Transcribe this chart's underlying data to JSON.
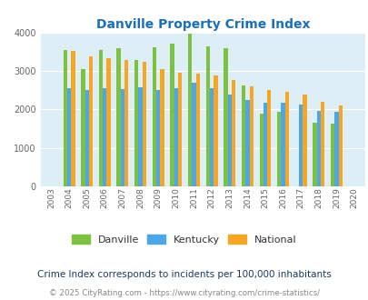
{
  "title": "Danville Property Crime Index",
  "years": [
    2003,
    2004,
    2005,
    2006,
    2007,
    2008,
    2009,
    2010,
    2011,
    2012,
    2013,
    2014,
    2015,
    2016,
    2017,
    2018,
    2019,
    2020
  ],
  "danville": [
    null,
    3550,
    3060,
    3550,
    3600,
    3300,
    3620,
    3720,
    3980,
    3640,
    3610,
    2620,
    1890,
    1950,
    null,
    1660,
    1640,
    null
  ],
  "kentucky": [
    null,
    2560,
    2520,
    2560,
    2540,
    2580,
    2520,
    2560,
    2690,
    2560,
    2380,
    2240,
    2180,
    2180,
    2130,
    1970,
    1930,
    null
  ],
  "national": [
    null,
    3520,
    3400,
    3350,
    3300,
    3240,
    3050,
    2970,
    2940,
    2890,
    2760,
    2610,
    2510,
    2460,
    2380,
    2200,
    2110,
    null
  ],
  "danville_color": "#7dc142",
  "kentucky_color": "#4da6e8",
  "national_color": "#f5a623",
  "bg_color": "#ddeef6",
  "ylim": [
    0,
    4000
  ],
  "yticks": [
    0,
    1000,
    2000,
    3000,
    4000
  ],
  "subtitle": "Crime Index corresponds to incidents per 100,000 inhabitants",
  "footer": "© 2025 CityRating.com - https://www.cityrating.com/crime-statistics/",
  "legend_labels": [
    "Danville",
    "Kentucky",
    "National"
  ],
  "bar_width": 0.22
}
